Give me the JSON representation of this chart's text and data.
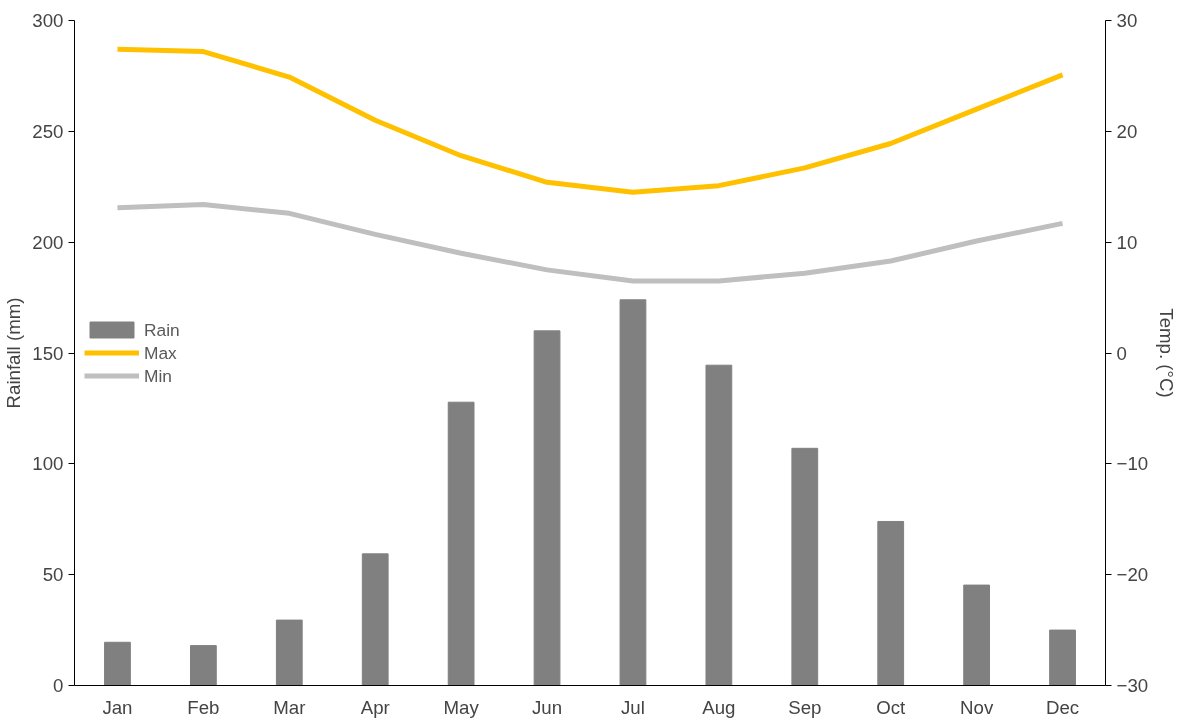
{
  "chart_data": {
    "type": "bar",
    "categories": [
      "Jan",
      "Feb",
      "Mar",
      "Apr",
      "May",
      "Jun",
      "Jul",
      "Aug",
      "Sep",
      "Oct",
      "Nov",
      "Dec"
    ],
    "ylabel": "Rainfall (mm)",
    "y2label": "Temp. (°C)",
    "ylim": [
      0,
      300
    ],
    "yticks": [
      0,
      50,
      100,
      150,
      200,
      250,
      300
    ],
    "y2lim": [
      -30,
      30
    ],
    "y2ticks": [
      -30,
      -20,
      -10,
      0,
      10,
      20,
      30
    ],
    "series": [
      {
        "name": "Rain",
        "color": "#808080",
        "values": [
          19.5,
          18,
          29.5,
          59.4,
          127.8,
          160,
          174,
          144.5,
          107,
          74,
          45.3,
          25
        ]
      },
      {
        "name": "Max",
        "type": "line",
        "axis": "y2",
        "color": "#ffc000",
        "values": [
          27.4,
          27.2,
          24.9,
          21.0,
          17.8,
          15.4,
          14.5,
          15.1,
          16.7,
          18.9,
          22.0,
          25.1
        ]
      },
      {
        "name": "Min",
        "type": "line",
        "axis": "y2",
        "color": "#bfbfbf",
        "values": [
          13.1,
          13.4,
          12.6,
          10.7,
          9.0,
          7.5,
          6.5,
          6.5,
          7.2,
          8.3,
          10.1,
          11.7
        ]
      }
    ],
    "grid": false,
    "legend": "left",
    "line_style": "solid",
    "marker": "none"
  }
}
